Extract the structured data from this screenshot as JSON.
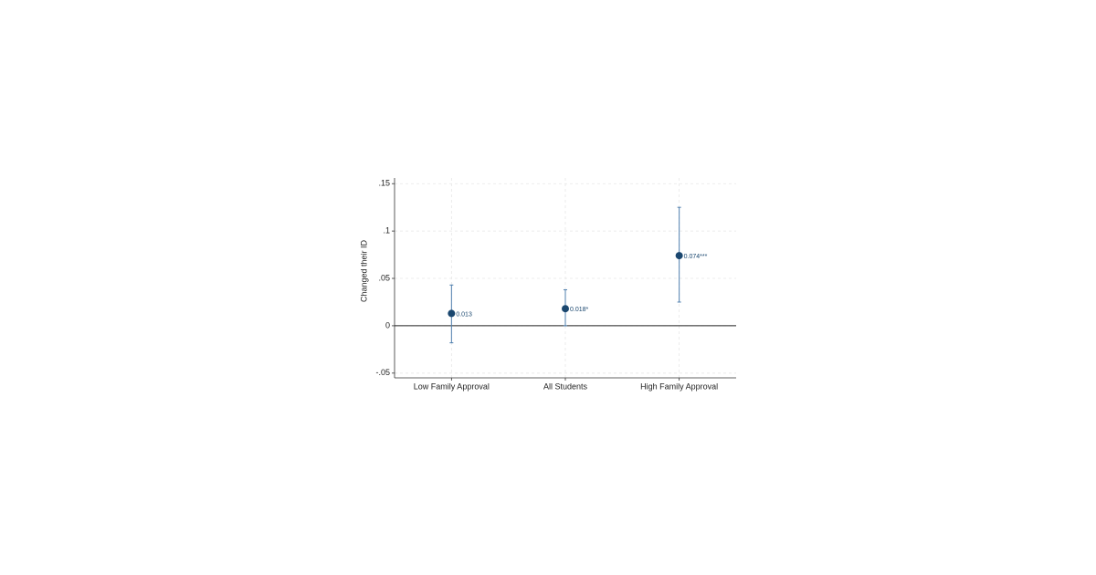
{
  "chart_data": {
    "type": "coefplot",
    "y_label": "Changed their ID",
    "categories": [
      "Low Family Approval",
      "All Students",
      "High Family Approval"
    ],
    "series": [
      {
        "color": "#1a476f",
        "errorbar_color": "#4f7fae",
        "values": [
          0.013,
          0.018,
          0.074
        ],
        "value_labels": [
          "0.013",
          "0.018*",
          "0.074***"
        ],
        "lower": [
          -0.018,
          0.0,
          0.025
        ],
        "upper": [
          0.043,
          0.038,
          0.125
        ]
      }
    ],
    "ylim": [
      -0.055,
      0.156
    ],
    "yticks": [
      {
        "value": -0.05,
        "label": "-.05"
      },
      0,
      {
        "value": 0.05,
        "label": ".05"
      },
      {
        "value": 0.1,
        "label": ".1"
      },
      {
        "value": 0.15,
        "label": ".15"
      }
    ],
    "grid": true,
    "zero_line": true
  }
}
